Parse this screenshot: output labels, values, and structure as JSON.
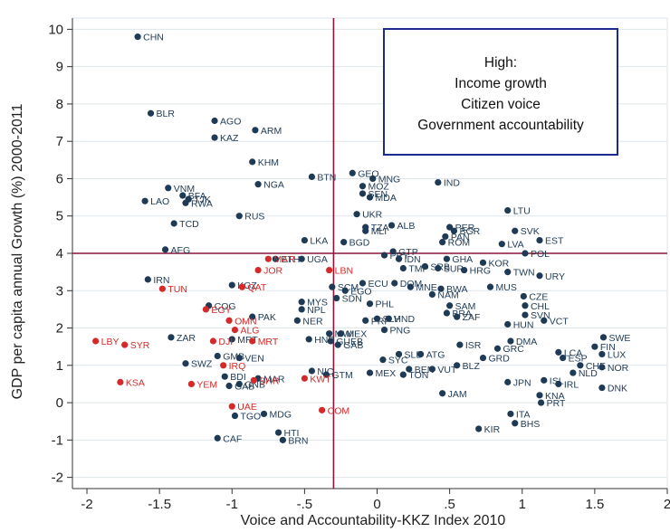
{
  "chart_data": {
    "type": "scatter",
    "xlabel": "Voice and Accountability-KKZ Index 2010",
    "ylabel": "GDP per capita annual Growth (%) 2000-2011",
    "xlim": [
      -2.1,
      2.0
    ],
    "ylim": [
      -2.3,
      10.3
    ],
    "xticks": [
      -2,
      -1.5,
      -1,
      -0.5,
      0,
      0.5,
      1,
      1.5,
      2
    ],
    "yticks": [
      -2,
      -1,
      0,
      1,
      2,
      3,
      4,
      5,
      6,
      7,
      8,
      9,
      10
    ],
    "xtick_labels": [
      "-2",
      "-1.5",
      "-1",
      "-.5",
      "0",
      ".5",
      "1",
      "1.5",
      "2"
    ],
    "ytick_labels": [
      "-2",
      "-1",
      "0",
      "1",
      "2",
      "3",
      "4",
      "5",
      "6",
      "7",
      "8",
      "9",
      "10"
    ],
    "reference_lines": {
      "x": -0.3,
      "y": 4.0,
      "color": "#8b1538"
    },
    "annotation_box": {
      "lines": [
        "High:",
        "Income growth",
        "Citizen voice",
        "Government accountability"
      ],
      "border_color": "#1c2a8f"
    },
    "colors": {
      "dark": "#1f3a55",
      "red": "#d42a2a"
    },
    "series": [
      {
        "color": "dark",
        "points": [
          [
            "CHN",
            -1.65,
            9.8
          ],
          [
            "BLR",
            -1.56,
            7.75
          ],
          [
            "AGO",
            -1.12,
            7.55
          ],
          [
            "ARM",
            -0.84,
            7.3
          ],
          [
            "KAZ",
            -1.12,
            7.1
          ],
          [
            "KHM",
            -0.86,
            6.45
          ],
          [
            "NGA",
            -0.82,
            5.85
          ],
          [
            "BTN",
            -0.45,
            6.05
          ],
          [
            "GEO",
            -0.17,
            6.15
          ],
          [
            "MNG",
            -0.03,
            6.0
          ],
          [
            "IND",
            0.42,
            5.9
          ],
          [
            "MOZ",
            -0.1,
            5.8
          ],
          [
            "SEN",
            -0.1,
            5.6
          ],
          [
            "MDA",
            -0.05,
            5.5
          ],
          [
            "VNM",
            -1.44,
            5.75
          ],
          [
            "BFA",
            -1.34,
            5.55
          ],
          [
            "TJK",
            -1.3,
            5.45
          ],
          [
            "RWA",
            -1.32,
            5.35
          ],
          [
            "LAO",
            -1.6,
            5.4
          ],
          [
            "RUS",
            -0.95,
            5.0
          ],
          [
            "LTU",
            0.9,
            5.15
          ],
          [
            "UKR",
            -0.14,
            5.05
          ],
          [
            "TCD",
            -1.4,
            4.8
          ],
          [
            "TZA",
            -0.08,
            4.7
          ],
          [
            "MLI",
            -0.08,
            4.6
          ],
          [
            "ALB",
            0.1,
            4.75
          ],
          [
            "PER",
            0.5,
            4.7
          ],
          [
            "BGR",
            0.53,
            4.6
          ],
          [
            "PAN",
            0.47,
            4.45
          ],
          [
            "ROM",
            0.45,
            4.3
          ],
          [
            "SVK",
            0.95,
            4.6
          ],
          [
            "LVA",
            0.86,
            4.25
          ],
          [
            "EST",
            1.12,
            4.35
          ],
          [
            "LKA",
            -0.5,
            4.35
          ],
          [
            "BGD",
            -0.23,
            4.3
          ],
          [
            "AFG",
            -1.46,
            4.1
          ],
          [
            "POL",
            1.02,
            4.0
          ],
          [
            "GTP",
            0.11,
            4.05
          ],
          [
            "PRY",
            0.05,
            3.95
          ],
          [
            "UGA",
            -0.52,
            3.85
          ],
          [
            "ETH",
            -0.7,
            3.85
          ],
          [
            "IDN",
            0.15,
            3.85
          ],
          [
            "GHA",
            0.48,
            3.85
          ],
          [
            "KOR",
            0.73,
            3.75
          ],
          [
            "TMP",
            0.18,
            3.6
          ],
          [
            "SRB",
            0.33,
            3.65
          ],
          [
            "SUR",
            0.42,
            3.6
          ],
          [
            "HRG",
            0.6,
            3.55
          ],
          [
            "TWN",
            0.9,
            3.5
          ],
          [
            "URY",
            1.12,
            3.4
          ],
          [
            "IRN",
            -1.58,
            3.3
          ],
          [
            "SCM",
            -0.31,
            3.1
          ],
          [
            "EGO",
            -0.22,
            3.0
          ],
          [
            "ECU",
            -0.1,
            3.2
          ],
          [
            "DOM",
            0.12,
            3.2
          ],
          [
            "MNE",
            0.23,
            3.1
          ],
          [
            "BWA",
            0.44,
            3.05
          ],
          [
            "MUS",
            0.78,
            3.1
          ],
          [
            "KGZ",
            -1.0,
            3.15
          ],
          [
            "NAM",
            0.38,
            2.9
          ],
          [
            "CZE",
            1.01,
            2.85
          ],
          [
            "SDN",
            -0.28,
            2.8
          ],
          [
            "PHL",
            -0.05,
            2.65
          ],
          [
            "SAM",
            0.5,
            2.6
          ],
          [
            "CHL",
            1.02,
            2.6
          ],
          [
            "MYS",
            -0.52,
            2.7
          ],
          [
            "SVN",
            1.02,
            2.35
          ],
          [
            "VCT",
            1.15,
            2.2
          ],
          [
            "NPL",
            -0.52,
            2.5
          ],
          [
            "COG",
            -1.16,
            2.6
          ],
          [
            "BRA",
            0.48,
            2.4
          ],
          [
            "ZAF",
            0.55,
            2.3
          ],
          [
            "PAK",
            -0.86,
            2.3
          ],
          [
            "PRI",
            -0.08,
            2.2
          ],
          [
            "SLV",
            0.0,
            2.25
          ],
          [
            "HND",
            0.08,
            2.25
          ],
          [
            "NER",
            -0.55,
            2.2
          ],
          [
            "HUN",
            0.9,
            2.1
          ],
          [
            "SWE",
            1.56,
            1.75
          ],
          [
            "PNG",
            0.05,
            1.95
          ],
          [
            "MWI",
            -0.33,
            1.85
          ],
          [
            "MEX",
            -0.25,
            1.85
          ],
          [
            "FIN",
            1.5,
            1.5
          ],
          [
            "ZAR",
            -1.42,
            1.75
          ],
          [
            "MRT",
            -1.0,
            1.7
          ],
          [
            "HNP",
            -0.47,
            1.7
          ],
          [
            "GUEB",
            -0.32,
            1.65
          ],
          [
            "GAB",
            -0.27,
            1.55
          ],
          [
            "DMA",
            0.92,
            1.65
          ],
          [
            "GRC",
            0.83,
            1.45
          ],
          [
            "ISR",
            0.57,
            1.55
          ],
          [
            "LCA",
            1.25,
            1.35
          ],
          [
            "LUX",
            1.55,
            1.3
          ],
          [
            "SLB",
            0.15,
            1.3
          ],
          [
            "ATG",
            0.3,
            1.3
          ],
          [
            "GMB",
            -1.1,
            1.25
          ],
          [
            "VEN",
            -0.95,
            1.2
          ],
          [
            "GRD",
            0.73,
            1.2
          ],
          [
            "ESP",
            1.28,
            1.2
          ],
          [
            "SYC",
            0.04,
            1.15
          ],
          [
            "SWZ",
            -1.32,
            1.05
          ],
          [
            "CHE",
            1.4,
            1.0
          ],
          [
            "BLZ",
            0.55,
            1.0
          ],
          [
            "NOR",
            1.55,
            0.95
          ],
          [
            "MEX",
            -0.05,
            0.8
          ],
          [
            "BEN",
            0.22,
            0.9
          ],
          [
            "VUT",
            0.38,
            0.9
          ],
          [
            "TON",
            0.18,
            0.75
          ],
          [
            "NLD",
            1.35,
            0.8
          ],
          [
            "NIC",
            -0.45,
            0.85
          ],
          [
            "GTM",
            -0.35,
            0.75
          ],
          [
            "BDI",
            -1.05,
            0.7
          ],
          [
            "MAR",
            -0.82,
            0.65
          ],
          [
            "GNB",
            -0.95,
            0.5
          ],
          [
            "GAB",
            -1.02,
            0.45
          ],
          [
            "JPN",
            0.9,
            0.55
          ],
          [
            "ISL",
            1.15,
            0.6
          ],
          [
            "IRL",
            1.25,
            0.5
          ],
          [
            "DNK",
            1.55,
            0.4
          ],
          [
            "JAM",
            0.45,
            0.25
          ],
          [
            "KNA",
            1.12,
            0.2
          ],
          [
            "PRT",
            1.13,
            0.0
          ],
          [
            "TGO",
            -0.98,
            -0.35
          ],
          [
            "MDG",
            -0.78,
            -0.3
          ],
          [
            "ITA",
            0.92,
            -0.3
          ],
          [
            "BHS",
            0.95,
            -0.55
          ],
          [
            "KIR",
            0.7,
            -0.7
          ],
          [
            "CAF",
            -1.1,
            -0.95
          ],
          [
            "HTI",
            -0.68,
            -0.8
          ],
          [
            "BRN",
            -0.65,
            -1.0
          ]
        ]
      },
      {
        "color": "red",
        "points": [
          [
            "MAR",
            -0.75,
            3.85
          ],
          [
            "JOR",
            -0.82,
            3.55
          ],
          [
            "LBN",
            -0.33,
            3.55
          ],
          [
            "TUN",
            -1.48,
            3.05
          ],
          [
            "QAT",
            -0.93,
            3.1
          ],
          [
            "EGY",
            -1.18,
            2.5
          ],
          [
            "DJI",
            -1.13,
            1.65
          ],
          [
            "OMN",
            -1.02,
            2.2
          ],
          [
            "ALG",
            -0.98,
            1.95
          ],
          [
            "MRT",
            -0.86,
            1.65
          ],
          [
            "LBY",
            -1.94,
            1.65
          ],
          [
            "SYR",
            -1.74,
            1.55
          ],
          [
            "IRQ",
            -1.06,
            1.0
          ],
          [
            "BHR",
            -0.85,
            0.6
          ],
          [
            "KSA",
            -1.77,
            0.55
          ],
          [
            "YEM",
            -1.28,
            0.5
          ],
          [
            "UAE",
            -1.0,
            -0.1
          ],
          [
            "KWT",
            -0.5,
            0.65
          ],
          [
            "COM",
            -0.38,
            -0.2
          ]
        ]
      }
    ]
  }
}
